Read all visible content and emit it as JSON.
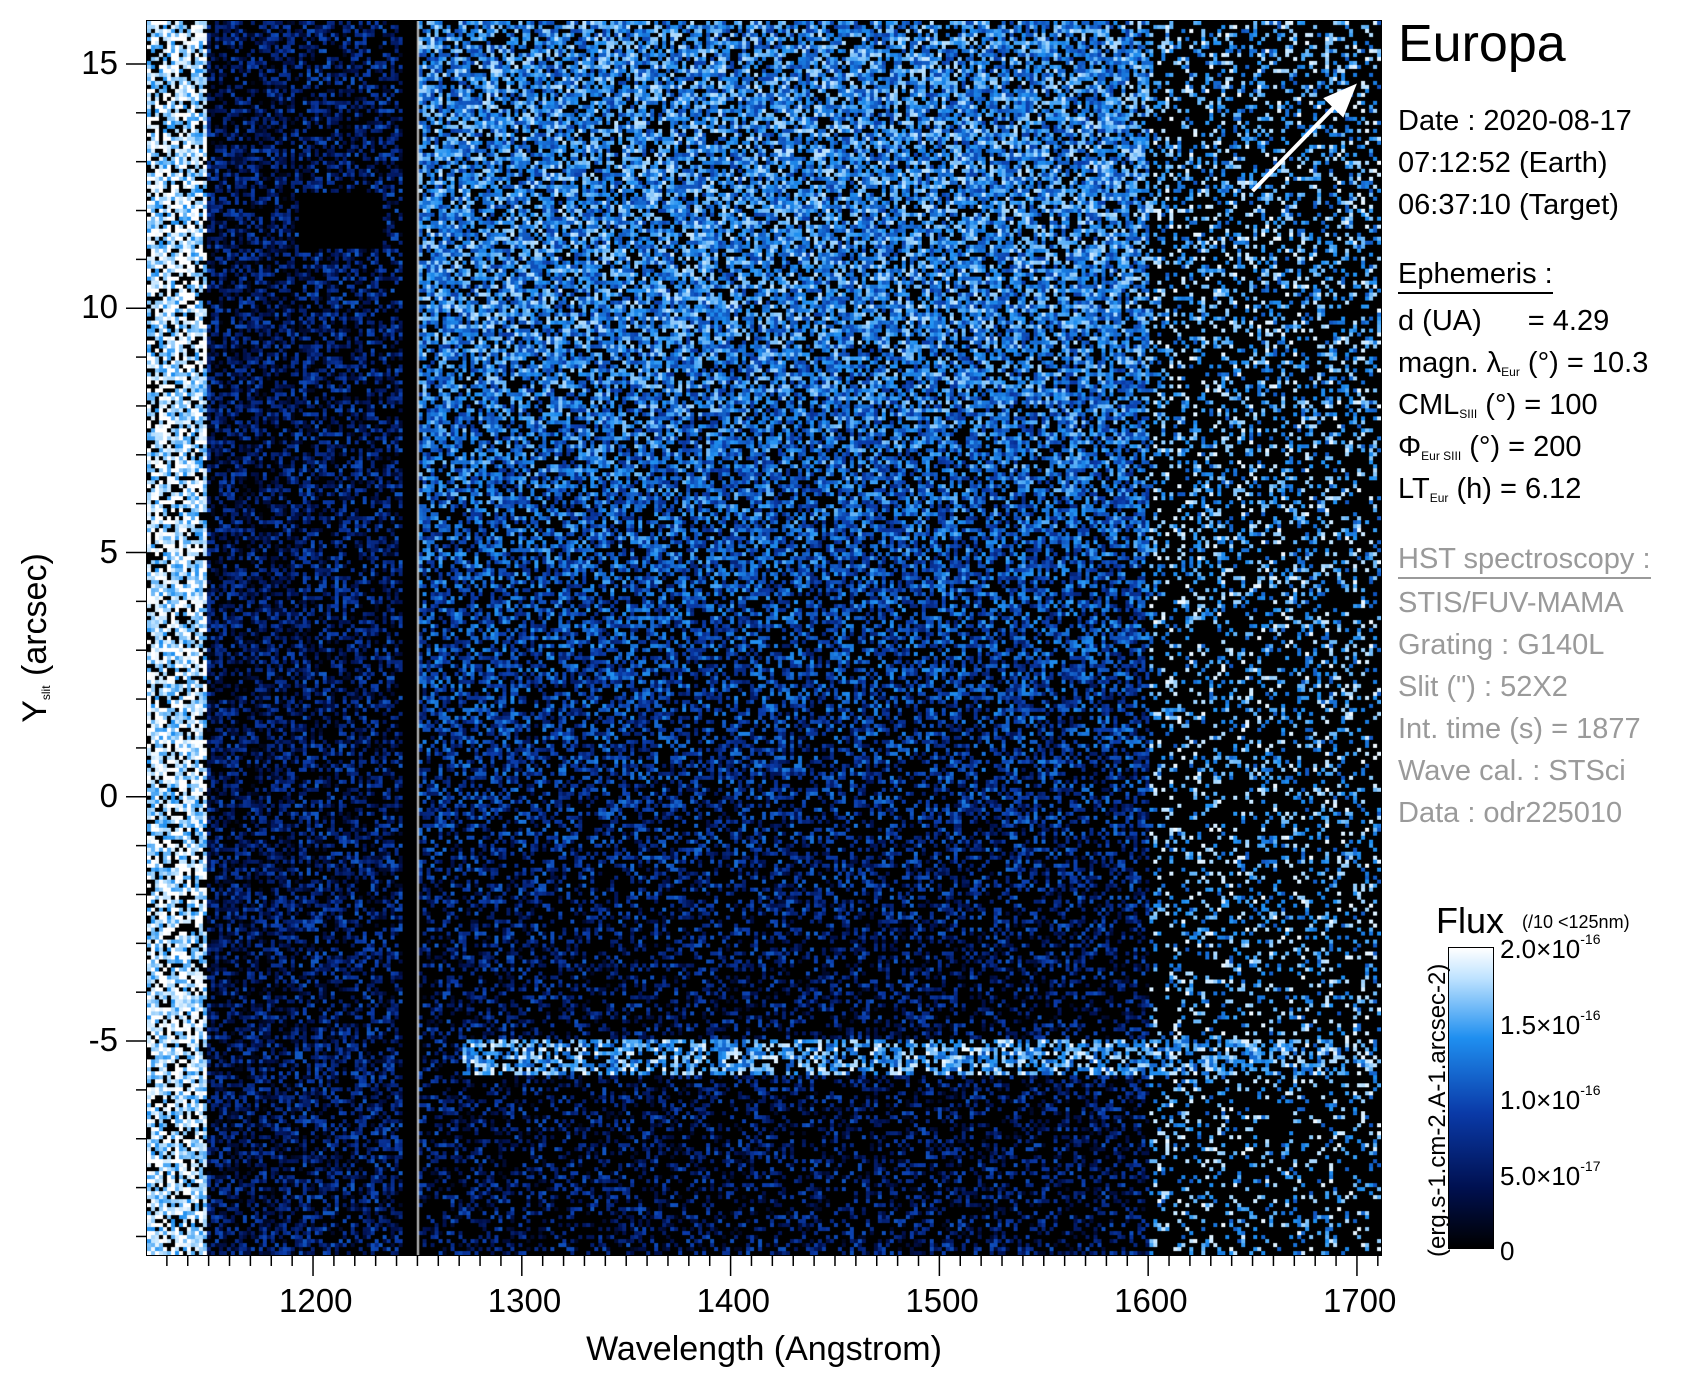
{
  "chart_data": {
    "type": "heatmap",
    "title": "Europa",
    "xlabel": "Wavelength (Angstrom)",
    "ylabel_main": "Y",
    "ylabel_sub": "slit",
    "ylabel_rest": " (arcsec)",
    "xlim": [
      1120,
      1712
    ],
    "ylim": [
      -9.4,
      15.9
    ],
    "x_ticks": [
      1200,
      1300,
      1400,
      1500,
      1600,
      1700
    ],
    "x_tick_labels": [
      "1200",
      "1300",
      "1400",
      "1500",
      "1600",
      "1700"
    ],
    "y_ticks": [
      -5,
      0,
      5,
      10,
      15
    ],
    "y_tick_labels": [
      "-5",
      "0",
      "5",
      "10",
      "15"
    ],
    "colorbar": {
      "title": "Flux",
      "note": "(/10 <125nm)",
      "unit": "(erg.s-1.cm-2.A-1.arcsec-2)",
      "range": [
        0,
        2e-16
      ],
      "ticks": [
        {
          "value": 2e-16,
          "mant": "2.0×10",
          "exp": "-16"
        },
        {
          "value": 1.5e-16,
          "mant": "1.5×10",
          "exp": "-16"
        },
        {
          "value": 1e-16,
          "mant": "1.0×10",
          "exp": "-16"
        },
        {
          "value": 5e-17,
          "mant": "5.0×10",
          "exp": "-17"
        },
        {
          "value": 0,
          "mant": "0",
          "exp": ""
        }
      ]
    },
    "features": [
      {
        "name": "bright band",
        "x_range": [
          1120,
          1148
        ],
        "level": 1.0
      },
      {
        "name": "emission line",
        "y": -5.3,
        "x_range": [
          1270,
          1712
        ],
        "level": 0.8
      },
      {
        "name": "gap",
        "x_range": [
          1241,
          1250
        ]
      }
    ],
    "arrow": {
      "from": [
        1650,
        12.4
      ],
      "to": [
        1700,
        14.6
      ]
    }
  },
  "info": {
    "date": "Date : 2020-08-17",
    "time_earth": "07:12:52 (Earth)",
    "time_target": "06:37:10 (Target)",
    "ephemeris_header": "Ephemeris :",
    "d_label": "d (UA)",
    "d_value": "= 4.29",
    "magn_label": "magn. λ",
    "magn_sub": "Eur",
    "magn_rest": " (°)  = 10.3",
    "cml_label": "CML",
    "cml_sub": "SIII",
    "cml_rest": " (°) = 100",
    "phi_label": "Φ",
    "phi_sub": "Eur SIII",
    "phi_rest": " (°) = 200",
    "lt_label": "LT",
    "lt_sub": "Eur",
    "lt_rest": " (h) = 6.12",
    "hst_header": "HST spectroscopy :",
    "instrument": "STIS/FUV-MAMA",
    "grating": "Grating : G140L",
    "slit": "Slit (\") : 52X2",
    "int_time": "Int. time (s) = 1877",
    "wave_cal": "Wave cal. : STSci",
    "data_id": "Data : odr225010"
  },
  "colors": {
    "black": "#000000",
    "dark_blue": "#001050",
    "mid_blue": "#0a3aa8",
    "light_blue": "#1f8ff0",
    "white": "#ffffff",
    "gray_text": "#9a9a9a"
  }
}
